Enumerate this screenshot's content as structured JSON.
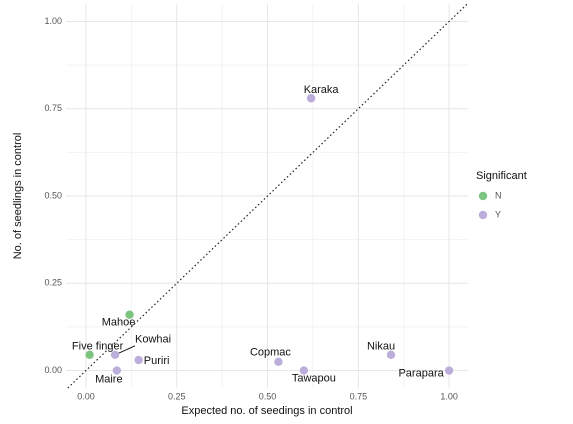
{
  "chart_data": {
    "type": "scatter",
    "xlabel": "Expected no. of seedings in control",
    "ylabel": "No. of seedlings in control",
    "legend_title": "Significant",
    "legend": "right",
    "grid": true,
    "xlim": [
      -0.055,
      1.052
    ],
    "ylim": [
      -0.05,
      1.05
    ],
    "xticks": [
      {
        "value": 0,
        "label": "0.00"
      },
      {
        "value": 0.25,
        "label": "0.25"
      },
      {
        "value": 0.5,
        "label": "0.50"
      },
      {
        "value": 0.75,
        "label": "0.75"
      },
      {
        "value": 1,
        "label": "1.00"
      }
    ],
    "yticks": [
      {
        "value": 0,
        "label": "0.00"
      },
      {
        "value": 0.25,
        "label": "0.25"
      },
      {
        "value": 0.5,
        "label": "0.50"
      },
      {
        "value": 0.75,
        "label": "0.75"
      },
      {
        "value": 1,
        "label": "1.00"
      }
    ],
    "series": [
      {
        "name": "N",
        "color": "#7cc47f",
        "labels": [
          "Five finger",
          "Mahoe"
        ],
        "x": [
          0.01,
          0.12
        ],
        "values": [
          0.045,
          0.16
        ]
      },
      {
        "name": "Y",
        "color": "#bcaedb",
        "labels": [
          "Kowhai",
          "Maire",
          "Puriri",
          "Karaka",
          "Copmac",
          "Tawapou",
          "Nikau",
          "Parapara"
        ],
        "x": [
          0.08,
          0.085,
          0.145,
          0.62,
          0.53,
          0.6,
          0.84,
          1.0
        ],
        "values": [
          0.045,
          0,
          0.03,
          0.78,
          0.025,
          0,
          0.045,
          0
        ]
      }
    ]
  }
}
